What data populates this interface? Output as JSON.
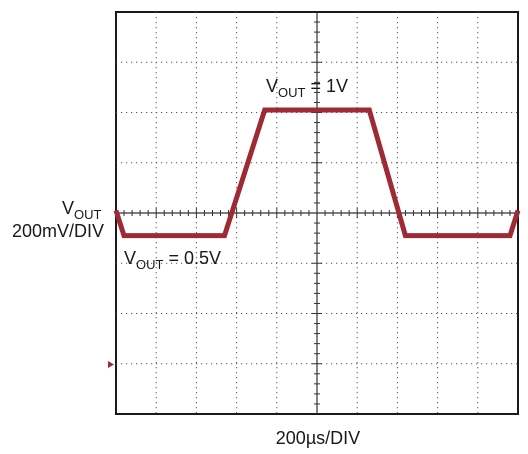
{
  "chart_data": {
    "type": "line",
    "title": "",
    "xlabel": "200µs/DIV",
    "ylabel_line1": "V",
    "ylabel_line1_sub": "OUT",
    "ylabel_line2": "200mV/DIV",
    "divisions": {
      "x": 10,
      "y": 8
    },
    "xlim_div": [
      0,
      10
    ],
    "ylim_div": [
      -4,
      4
    ],
    "grid": true,
    "series": [
      {
        "color": "#9e2a36",
        "points_div": [
          [
            0,
            0.05
          ],
          [
            0.2,
            -0.45
          ],
          [
            2.7,
            -0.45
          ],
          [
            3.7,
            2.05
          ],
          [
            6.3,
            2.05
          ],
          [
            7.2,
            -0.45
          ],
          [
            9.8,
            -0.45
          ],
          [
            10,
            0.05
          ]
        ]
      }
    ],
    "annotations": [
      {
        "prefix": "V",
        "sub": "OUT",
        "text": " = 1V"
      },
      {
        "prefix": "V",
        "sub": "OUT",
        "text": " = 0.5V"
      }
    ],
    "trigger_marker_color": "#9e2a36"
  }
}
